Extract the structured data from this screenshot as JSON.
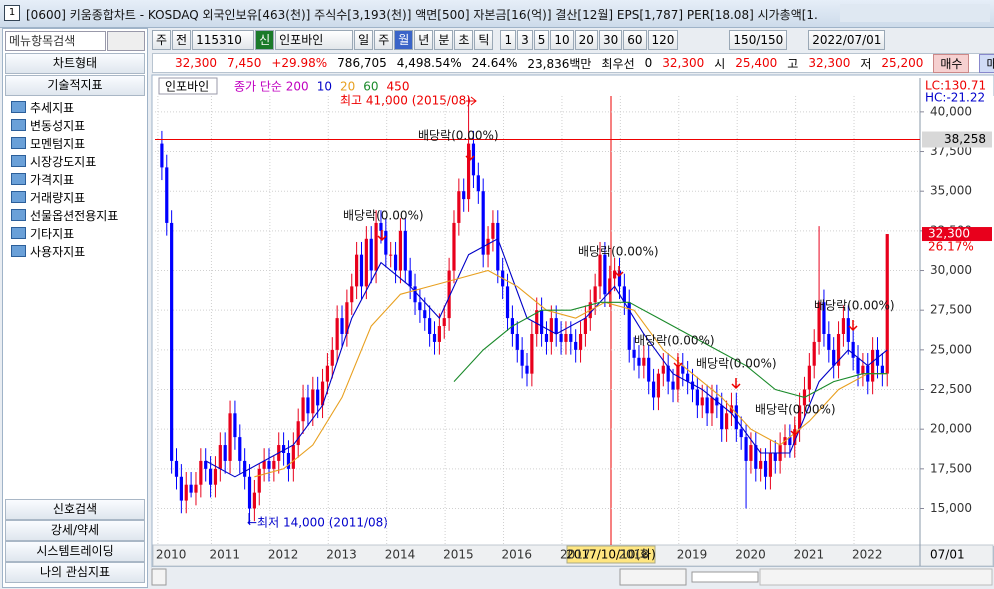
{
  "window": {
    "title": "[0600] 키움종합차트 - KOSDAQ 외국인보유[463(천)] 주식수[3,193(천)] 액면[500] 자본금[16(억)] 결산[12월] EPS[1,787] PER[18.08] 시가총액[1."
  },
  "toolbar": {
    "items": [
      "주",
      "전",
      "115310",
      "신",
      "인포바인",
      "일",
      "주",
      "월",
      "년",
      "분",
      "초",
      "틱",
      "1",
      "3",
      "5",
      "10",
      "20",
      "30",
      "60",
      "120",
      "150/150",
      "2022/07/01"
    ]
  },
  "info_bar": {
    "items": [
      "32,300",
      "7,450",
      "+29.98%",
      "786,705",
      "4,498.54%",
      "24.64%",
      "23,836백만",
      "최우선",
      "0",
      "32,300",
      "시",
      "25,400",
      "고",
      "32,300",
      "저",
      "25,200"
    ],
    "buy": "매수",
    "sell": "매도"
  },
  "sidebar": {
    "search": "메뉴항목검색",
    "chart_type": "차트형태",
    "indicators": "기술적지표",
    "items": [
      "추세지표",
      "변동성지표",
      "모멘텀지표",
      "시장강도지표",
      "가격지표",
      "거래량지표",
      "선물옵션전용지표",
      "기타지표",
      "사용자지표"
    ],
    "bottom": [
      "신호검색",
      "강세/약세",
      "시스템트레이딩",
      "나의 관심지표"
    ]
  },
  "chart_data": {
    "type": "candlestick",
    "name": "인포바인",
    "legend_prefix": "종가 단순 200",
    "legend_suffix": "450",
    "categories": [
      "2010",
      null,
      null,
      null,
      null,
      null,
      null,
      null,
      null,
      null,
      null,
      "2011",
      null,
      null,
      null,
      null,
      null,
      null,
      null,
      null,
      null,
      null,
      null,
      "2012",
      null,
      null,
      null,
      null,
      null,
      null,
      null,
      null,
      null,
      null,
      null,
      "2013",
      null,
      null,
      null,
      null,
      null,
      null,
      null,
      null,
      null,
      null,
      null,
      "2014",
      null,
      null,
      null,
      null,
      null,
      null,
      null,
      null,
      null,
      null,
      null,
      "2015",
      null,
      null,
      null,
      null,
      null,
      null,
      null,
      null,
      null,
      null,
      null,
      "2016",
      null,
      null,
      null,
      null,
      null,
      null,
      null,
      null,
      null,
      null,
      null,
      "2017",
      null,
      null,
      null,
      null,
      null,
      null,
      null,
      null,
      null,
      null,
      null,
      "2018",
      null,
      null,
      null,
      null,
      null,
      null,
      null,
      null,
      null,
      null,
      null,
      "2019",
      null,
      null,
      null,
      null,
      null,
      null,
      null,
      null,
      null,
      null,
      null,
      "2020",
      null,
      null,
      null,
      null,
      null,
      null,
      null,
      null,
      null,
      null,
      null,
      "2021",
      null,
      null,
      null,
      null,
      null,
      null,
      null,
      null,
      null,
      null,
      null,
      "2022",
      null,
      null,
      null,
      null,
      null,
      null
    ],
    "end_label": "07/01",
    "open": [
      38000,
      36500,
      33000,
      18000,
      17000,
      15500,
      16500,
      16000,
      16500,
      18000,
      17500,
      16500,
      17500,
      19000,
      18000,
      21000,
      19500,
      18000,
      17000,
      15000,
      16000,
      17500,
      18000,
      17500,
      18000,
      19000,
      18500,
      17500,
      19000,
      20500,
      22000,
      21000,
      22500,
      21500,
      23000,
      24000,
      25000,
      27000,
      26000,
      28000,
      29000,
      31000,
      29000,
      32000,
      30000,
      33000,
      32500,
      31000,
      31000,
      30000,
      32500,
      30000,
      29000,
      28000,
      27500,
      27000,
      26000,
      25500,
      26500,
      27000,
      30000,
      33000,
      35000,
      34500,
      38000,
      36000,
      35000,
      31000,
      32000,
      33000,
      30000,
      29000,
      27000,
      26000,
      25000,
      24000,
      23500,
      26000,
      27500,
      26000,
      25500,
      27000,
      26000,
      25500,
      26000,
      25500,
      25000,
      26000,
      27000,
      28000,
      29000,
      31000,
      28500,
      29500,
      30000,
      29000,
      28000,
      25000,
      24500,
      24000,
      24500,
      23000,
      22000,
      23500,
      24000,
      23000,
      22500,
      24000,
      23500,
      23000,
      22500,
      21500,
      22000,
      21000,
      22000,
      21500,
      20000,
      21000,
      21500,
      20000,
      19500,
      18000,
      19000,
      17500,
      18000,
      17000,
      18500,
      18000,
      19000,
      19500,
      19000,
      20000,
      21500,
      22500,
      24000,
      25500,
      28000,
      26000,
      25000,
      24000,
      26000,
      27000,
      25500,
      24500,
      23500,
      24000,
      23000,
      25000,
      24000,
      23500
    ],
    "high": [
      38800,
      37300,
      33800,
      18800,
      17800,
      17300,
      17300,
      17300,
      18800,
      18800,
      18300,
      18300,
      19800,
      19800,
      21800,
      21800,
      20300,
      18800,
      17800,
      16800,
      17800,
      18800,
      18800,
      18300,
      19800,
      19800,
      19300,
      19800,
      21300,
      22800,
      22800,
      23300,
      23300,
      23800,
      24800,
      25800,
      27800,
      27800,
      28800,
      29800,
      31800,
      31800,
      32800,
      32800,
      33800,
      33800,
      33300,
      31800,
      31800,
      33300,
      33300,
      30800,
      29800,
      28800,
      28300,
      27800,
      26800,
      27300,
      27800,
      30800,
      33800,
      35800,
      35800,
      41000,
      38800,
      36800,
      35800,
      32800,
      33800,
      33800,
      30800,
      29800,
      27800,
      26800,
      25800,
      24800,
      26800,
      28300,
      28300,
      26800,
      27800,
      27800,
      26800,
      26800,
      26800,
      26300,
      26800,
      27800,
      28800,
      29800,
      31800,
      31800,
      30300,
      30800,
      30800,
      29800,
      28800,
      25800,
      25300,
      25300,
      25300,
      23800,
      23800,
      24800,
      24800,
      23800,
      24800,
      24800,
      24300,
      23800,
      23300,
      22800,
      22800,
      22800,
      22800,
      22300,
      21800,
      22300,
      22300,
      20800,
      20300,
      19800,
      19800,
      18800,
      18800,
      19300,
      19300,
      19800,
      20300,
      20300,
      20800,
      22300,
      23300,
      24800,
      26300,
      32800,
      28800,
      26800,
      25800,
      26800,
      27800,
      27800,
      26300,
      25300,
      24800,
      24800,
      25800,
      25800,
      24800,
      32300
    ],
    "low": [
      35700,
      32200,
      17200,
      16200,
      14700,
      14700,
      15700,
      15200,
      15700,
      16700,
      15700,
      15700,
      16700,
      17200,
      17200,
      18700,
      17200,
      16200,
      14000,
      14200,
      15200,
      16700,
      16700,
      16700,
      17200,
      17700,
      16700,
      16700,
      18200,
      19700,
      20200,
      20200,
      20700,
      20700,
      22200,
      23200,
      24200,
      25200,
      25200,
      27200,
      28200,
      28200,
      28200,
      29200,
      29200,
      31700,
      30200,
      30200,
      29200,
      29200,
      29200,
      28200,
      27200,
      26700,
      26200,
      25200,
      24700,
      24700,
      25700,
      26200,
      29200,
      32200,
      33700,
      33700,
      35200,
      34200,
      30200,
      30200,
      31200,
      29200,
      28200,
      26200,
      25200,
      24200,
      23200,
      22700,
      22700,
      25200,
      25200,
      24700,
      24700,
      25200,
      24700,
      24700,
      24700,
      24200,
      24200,
      25200,
      26200,
      27200,
      28200,
      27700,
      27700,
      28700,
      28200,
      27200,
      24200,
      23700,
      23200,
      23200,
      22200,
      21200,
      21200,
      22700,
      22200,
      21700,
      21700,
      22700,
      22200,
      21700,
      20700,
      20700,
      20200,
      20200,
      20700,
      19200,
      19200,
      20200,
      19200,
      18700,
      15000,
      17200,
      16700,
      16700,
      16200,
      16200,
      17200,
      17200,
      18200,
      18200,
      18200,
      19200,
      20700,
      21700,
      23200,
      24700,
      25200,
      24200,
      23200,
      23200,
      25200,
      24700,
      23700,
      22700,
      22700,
      22200,
      22200,
      23200,
      22700,
      22700
    ],
    "close": [
      36500,
      33000,
      18000,
      17000,
      15500,
      16500,
      16000,
      16500,
      18000,
      17500,
      16500,
      17500,
      19000,
      18000,
      21000,
      19500,
      18000,
      17000,
      15000,
      16000,
      17500,
      18000,
      17500,
      18000,
      19000,
      18500,
      17500,
      19000,
      20500,
      22000,
      21000,
      22500,
      21500,
      23000,
      24000,
      25000,
      27000,
      26000,
      28000,
      29000,
      31000,
      29000,
      32000,
      30000,
      33000,
      32500,
      31000,
      31000,
      30000,
      32500,
      30000,
      29000,
      28000,
      27500,
      27000,
      26000,
      25500,
      26500,
      27000,
      30000,
      33000,
      35000,
      34500,
      38000,
      36000,
      35000,
      31000,
      32000,
      33000,
      30000,
      29000,
      27000,
      26000,
      25000,
      24000,
      23500,
      26000,
      27500,
      26000,
      25500,
      27000,
      26000,
      25500,
      26000,
      25500,
      25000,
      26000,
      27000,
      28000,
      29000,
      31000,
      28500,
      29500,
      30000,
      29000,
      28000,
      25000,
      24500,
      24000,
      24500,
      23000,
      22000,
      23500,
      24000,
      23000,
      22500,
      24000,
      23500,
      23000,
      22500,
      21500,
      22000,
      21000,
      22000,
      21500,
      20000,
      21000,
      21500,
      20000,
      19500,
      18000,
      19000,
      17500,
      18000,
      17000,
      18500,
      18000,
      19000,
      19500,
      19000,
      20000,
      21500,
      22500,
      24000,
      25500,
      28000,
      26000,
      25000,
      24000,
      26000,
      27000,
      25500,
      24500,
      23500,
      24000,
      23000,
      25000,
      24000,
      23500,
      32300
    ],
    "up_color": "#e8001c",
    "down_color": "#0000ff",
    "series": [
      {
        "name": "10",
        "color": "#0000c8",
        "x": [
          9,
          15,
          21,
          27,
          33,
          39,
          45,
          51,
          57,
          63,
          69,
          75,
          81,
          87,
          93,
          99,
          105,
          111,
          117,
          123,
          129,
          135,
          141,
          145,
          149
        ],
        "values": [
          18000,
          17000,
          18000,
          19000,
          21500,
          27000,
          30500,
          29000,
          27000,
          31000,
          32000,
          27000,
          26000,
          27000,
          29000,
          26000,
          23500,
          22500,
          21000,
          18500,
          18500,
          23000,
          25000,
          24000,
          25000
        ]
      },
      {
        "name": "20",
        "color": "#e8a020",
        "x": [
          19,
          25,
          31,
          37,
          43,
          49,
          55,
          61,
          67,
          73,
          79,
          85,
          91,
          97,
          103,
          109,
          115,
          121,
          127,
          133,
          139,
          145,
          149
        ],
        "values": [
          17000,
          17500,
          19000,
          22000,
          26500,
          28500,
          29000,
          29500,
          30000,
          29000,
          27500,
          27000,
          28000,
          27500,
          25000,
          23500,
          22000,
          20000,
          19000,
          20500,
          22500,
          23500,
          23500
        ]
      },
      {
        "name": "60",
        "color": "#1a8a2a",
        "x": [
          60,
          66,
          72,
          78,
          84,
          90,
          96,
          102,
          108,
          114,
          120,
          126,
          132,
          138,
          144,
          149
        ],
        "values": [
          23000,
          25000,
          26500,
          27500,
          27500,
          28000,
          28000,
          27000,
          26000,
          25000,
          24000,
          22500,
          22000,
          23000,
          23500,
          23500
        ]
      }
    ],
    "ylim": [
      12700,
      41000
    ],
    "yticks": [
      {
        "value": 15000,
        "label": "15,000"
      },
      {
        "value": 17500,
        "label": "17,500"
      },
      {
        "value": 20000,
        "label": "20,000"
      },
      {
        "value": 22500,
        "label": "22,500"
      },
      {
        "value": 25000,
        "label": "25,000"
      },
      {
        "value": 27500,
        "label": "27,500"
      },
      {
        "value": 30000,
        "label": "30,000"
      },
      {
        "value": 32500,
        "label": "32,500"
      },
      {
        "value": 35000,
        "label": "35,000"
      },
      {
        "value": 37500,
        "label": "37,500"
      },
      {
        "value": 40000,
        "label": "40,000"
      }
    ],
    "grid": true,
    "cursor_price": {
      "value": 38258,
      "label": "38,258"
    },
    "cursor_date": "2017/10/10(화)",
    "last_price": {
      "value": 32300,
      "label": "32,300"
    },
    "last_change": "26.17%",
    "lc": "LC:130.71",
    "hc": "HC:-21.22",
    "high_note": "최고 41,000 (2015/08)",
    "low_note": "←최저 14,000 (2011/08)",
    "dividend_notes": [
      "배당락(0.00%)",
      "배당락(0.00%)",
      "배당락(0.00%)",
      "배당락(0.00%)",
      "배당락(0.00%)",
      "배당락(0.00%)",
      "배당락(0.00%)"
    ]
  }
}
